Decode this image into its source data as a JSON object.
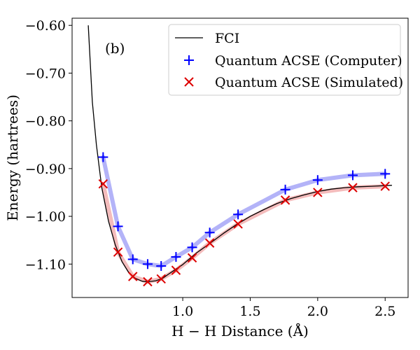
{
  "chart_data": {
    "type": "line",
    "panel_label": "(b)",
    "xlabel": "H − H Distance (Å)",
    "ylabel": "Energy (hartrees)",
    "xlim": [
      0.18,
      2.67
    ],
    "ylim": [
      -1.17,
      -0.585
    ],
    "xticks": [
      1.0,
      1.5,
      2.0,
      2.5
    ],
    "xtick_labels": [
      "1.0",
      "1.5",
      "2.0",
      "2.5"
    ],
    "yticks": [
      -0.6,
      -0.7,
      -0.8,
      -0.9,
      -1.0,
      -1.1
    ],
    "ytick_labels": [
      "−0.60",
      "−0.70",
      "−0.80",
      "−0.90",
      "−1.00",
      "−1.10"
    ],
    "legend": {
      "position": "top-right",
      "entries": [
        {
          "label": "FCI",
          "marker": "line",
          "color": "#000000"
        },
        {
          "label": "Quantum ACSE (Computer)",
          "marker": "plus",
          "color": "#0000ff"
        },
        {
          "label": "Quantum ACSE (Simulated)",
          "marker": "x",
          "color": "#dd0000"
        }
      ]
    },
    "series": [
      {
        "name": "FCI",
        "style": "line",
        "color": "#000000",
        "x": [
          0.3,
          0.33,
          0.36,
          0.4,
          0.45,
          0.5,
          0.55,
          0.6,
          0.65,
          0.7,
          0.74,
          0.8,
          0.85,
          0.9,
          1.0,
          1.1,
          1.2,
          1.3,
          1.4,
          1.5,
          1.6,
          1.7,
          1.8,
          1.9,
          2.0,
          2.1,
          2.2,
          2.3,
          2.4,
          2.55
        ],
        "y": [
          -0.6,
          -0.76,
          -0.85,
          -0.94,
          -1.01,
          -1.06,
          -1.095,
          -1.118,
          -1.13,
          -1.136,
          -1.137,
          -1.135,
          -1.13,
          -1.12,
          -1.101,
          -1.077,
          -1.057,
          -1.036,
          -1.017,
          -1.0,
          -0.986,
          -0.973,
          -0.963,
          -0.955,
          -0.948,
          -0.943,
          -0.94,
          -0.938,
          -0.937,
          -0.935
        ]
      },
      {
        "name": "Quantum ACSE (Computer)",
        "style": "plus",
        "color": "#0000ff",
        "band_color": "#b3b3f8",
        "x": [
          0.41,
          0.52,
          0.63,
          0.74,
          0.84,
          0.95,
          1.07,
          1.2,
          1.41,
          1.76,
          2.0,
          2.26,
          2.5
        ],
        "y": [
          -0.876,
          -1.021,
          -1.09,
          -1.1,
          -1.104,
          -1.085,
          -1.065,
          -1.034,
          -0.996,
          -0.944,
          -0.924,
          -0.914,
          -0.911
        ]
      },
      {
        "name": "Quantum ACSE (Simulated)",
        "style": "x",
        "color": "#dd0000",
        "band_color": "#f4bcbc",
        "x": [
          0.41,
          0.52,
          0.63,
          0.74,
          0.84,
          0.95,
          1.07,
          1.2,
          1.41,
          1.76,
          2.0,
          2.26,
          2.5
        ],
        "y": [
          -0.932,
          -1.075,
          -1.126,
          -1.137,
          -1.131,
          -1.113,
          -1.087,
          -1.056,
          -1.016,
          -0.966,
          -0.95,
          -0.94,
          -0.937
        ]
      }
    ]
  }
}
